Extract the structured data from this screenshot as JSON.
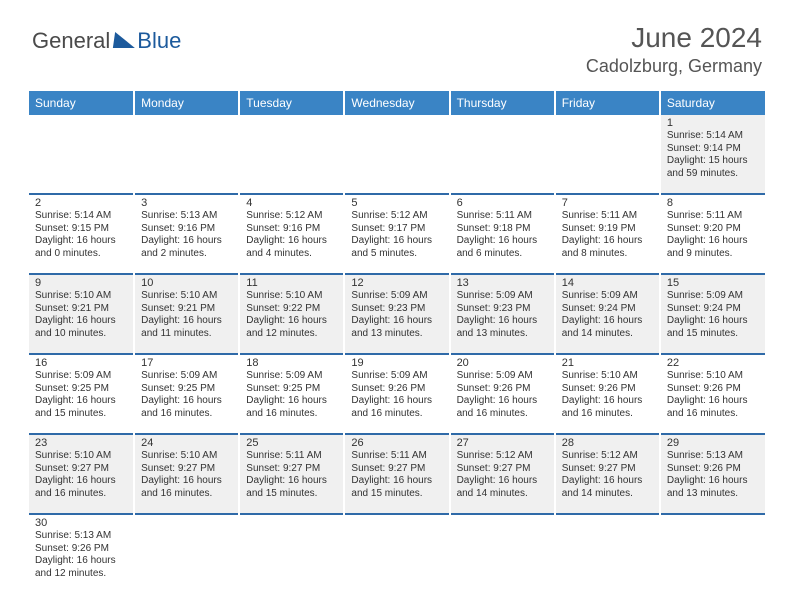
{
  "brand": {
    "general": "General",
    "blue": "Blue"
  },
  "title": "June 2024",
  "location": "Cadolzburg, Germany",
  "dayHeaders": [
    "Sunday",
    "Monday",
    "Tuesday",
    "Wednesday",
    "Thursday",
    "Friday",
    "Saturday"
  ],
  "colors": {
    "headerBar": "#3a84c5",
    "stripeA": "#f0f0f0",
    "stripeB": "#ffffff",
    "separator": "#2f6aa8",
    "logoBlue": "#1c5a9c"
  },
  "weeks": [
    [
      null,
      null,
      null,
      null,
      null,
      null,
      {
        "n": "1",
        "sunrise": "Sunrise: 5:14 AM",
        "sunset": "Sunset: 9:14 PM",
        "daylight": "Daylight: 15 hours and 59 minutes."
      }
    ],
    [
      {
        "n": "2",
        "sunrise": "Sunrise: 5:14 AM",
        "sunset": "Sunset: 9:15 PM",
        "daylight": "Daylight: 16 hours and 0 minutes."
      },
      {
        "n": "3",
        "sunrise": "Sunrise: 5:13 AM",
        "sunset": "Sunset: 9:16 PM",
        "daylight": "Daylight: 16 hours and 2 minutes."
      },
      {
        "n": "4",
        "sunrise": "Sunrise: 5:12 AM",
        "sunset": "Sunset: 9:16 PM",
        "daylight": "Daylight: 16 hours and 4 minutes."
      },
      {
        "n": "5",
        "sunrise": "Sunrise: 5:12 AM",
        "sunset": "Sunset: 9:17 PM",
        "daylight": "Daylight: 16 hours and 5 minutes."
      },
      {
        "n": "6",
        "sunrise": "Sunrise: 5:11 AM",
        "sunset": "Sunset: 9:18 PM",
        "daylight": "Daylight: 16 hours and 6 minutes."
      },
      {
        "n": "7",
        "sunrise": "Sunrise: 5:11 AM",
        "sunset": "Sunset: 9:19 PM",
        "daylight": "Daylight: 16 hours and 8 minutes."
      },
      {
        "n": "8",
        "sunrise": "Sunrise: 5:11 AM",
        "sunset": "Sunset: 9:20 PM",
        "daylight": "Daylight: 16 hours and 9 minutes."
      }
    ],
    [
      {
        "n": "9",
        "sunrise": "Sunrise: 5:10 AM",
        "sunset": "Sunset: 9:21 PM",
        "daylight": "Daylight: 16 hours and 10 minutes."
      },
      {
        "n": "10",
        "sunrise": "Sunrise: 5:10 AM",
        "sunset": "Sunset: 9:21 PM",
        "daylight": "Daylight: 16 hours and 11 minutes."
      },
      {
        "n": "11",
        "sunrise": "Sunrise: 5:10 AM",
        "sunset": "Sunset: 9:22 PM",
        "daylight": "Daylight: 16 hours and 12 minutes."
      },
      {
        "n": "12",
        "sunrise": "Sunrise: 5:09 AM",
        "sunset": "Sunset: 9:23 PM",
        "daylight": "Daylight: 16 hours and 13 minutes."
      },
      {
        "n": "13",
        "sunrise": "Sunrise: 5:09 AM",
        "sunset": "Sunset: 9:23 PM",
        "daylight": "Daylight: 16 hours and 13 minutes."
      },
      {
        "n": "14",
        "sunrise": "Sunrise: 5:09 AM",
        "sunset": "Sunset: 9:24 PM",
        "daylight": "Daylight: 16 hours and 14 minutes."
      },
      {
        "n": "15",
        "sunrise": "Sunrise: 5:09 AM",
        "sunset": "Sunset: 9:24 PM",
        "daylight": "Daylight: 16 hours and 15 minutes."
      }
    ],
    [
      {
        "n": "16",
        "sunrise": "Sunrise: 5:09 AM",
        "sunset": "Sunset: 9:25 PM",
        "daylight": "Daylight: 16 hours and 15 minutes."
      },
      {
        "n": "17",
        "sunrise": "Sunrise: 5:09 AM",
        "sunset": "Sunset: 9:25 PM",
        "daylight": "Daylight: 16 hours and 16 minutes."
      },
      {
        "n": "18",
        "sunrise": "Sunrise: 5:09 AM",
        "sunset": "Sunset: 9:25 PM",
        "daylight": "Daylight: 16 hours and 16 minutes."
      },
      {
        "n": "19",
        "sunrise": "Sunrise: 5:09 AM",
        "sunset": "Sunset: 9:26 PM",
        "daylight": "Daylight: 16 hours and 16 minutes."
      },
      {
        "n": "20",
        "sunrise": "Sunrise: 5:09 AM",
        "sunset": "Sunset: 9:26 PM",
        "daylight": "Daylight: 16 hours and 16 minutes."
      },
      {
        "n": "21",
        "sunrise": "Sunrise: 5:10 AM",
        "sunset": "Sunset: 9:26 PM",
        "daylight": "Daylight: 16 hours and 16 minutes."
      },
      {
        "n": "22",
        "sunrise": "Sunrise: 5:10 AM",
        "sunset": "Sunset: 9:26 PM",
        "daylight": "Daylight: 16 hours and 16 minutes."
      }
    ],
    [
      {
        "n": "23",
        "sunrise": "Sunrise: 5:10 AM",
        "sunset": "Sunset: 9:27 PM",
        "daylight": "Daylight: 16 hours and 16 minutes."
      },
      {
        "n": "24",
        "sunrise": "Sunrise: 5:10 AM",
        "sunset": "Sunset: 9:27 PM",
        "daylight": "Daylight: 16 hours and 16 minutes."
      },
      {
        "n": "25",
        "sunrise": "Sunrise: 5:11 AM",
        "sunset": "Sunset: 9:27 PM",
        "daylight": "Daylight: 16 hours and 15 minutes."
      },
      {
        "n": "26",
        "sunrise": "Sunrise: 5:11 AM",
        "sunset": "Sunset: 9:27 PM",
        "daylight": "Daylight: 16 hours and 15 minutes."
      },
      {
        "n": "27",
        "sunrise": "Sunrise: 5:12 AM",
        "sunset": "Sunset: 9:27 PM",
        "daylight": "Daylight: 16 hours and 14 minutes."
      },
      {
        "n": "28",
        "sunrise": "Sunrise: 5:12 AM",
        "sunset": "Sunset: 9:27 PM",
        "daylight": "Daylight: 16 hours and 14 minutes."
      },
      {
        "n": "29",
        "sunrise": "Sunrise: 5:13 AM",
        "sunset": "Sunset: 9:26 PM",
        "daylight": "Daylight: 16 hours and 13 minutes."
      }
    ],
    [
      {
        "n": "30",
        "sunrise": "Sunrise: 5:13 AM",
        "sunset": "Sunset: 9:26 PM",
        "daylight": "Daylight: 16 hours and 12 minutes."
      },
      null,
      null,
      null,
      null,
      null,
      null
    ]
  ]
}
